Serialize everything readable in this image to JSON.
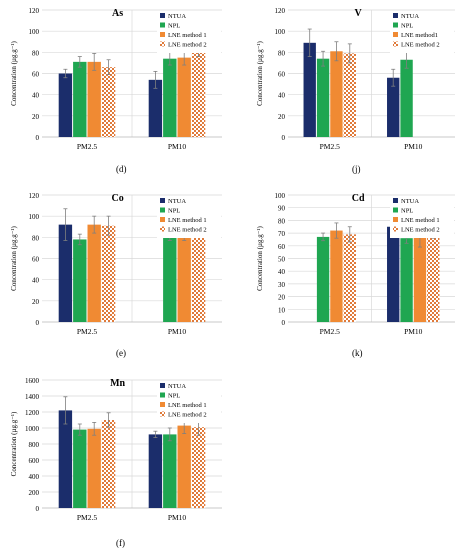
{
  "colors": {
    "NTUA": "#1b2d6b",
    "NPL": "#1fa651",
    "LNE_method_1": "#f08a33",
    "LNE_method_2": "#e07a3a",
    "grid": "#d9d9d9"
  },
  "chart_data": [
    {
      "type": "bar",
      "title": "As",
      "ylabel": "Concentration (µg.g⁻¹)",
      "ylim": [
        0,
        120
      ],
      "yticks": [
        "0",
        "20",
        "40",
        "60",
        "80",
        "100",
        "120"
      ],
      "categories": [
        "PM2.5",
        "PM10"
      ],
      "legend_position": "top-right",
      "series": [
        {
          "name": "NTUA",
          "values": [
            60,
            54
          ],
          "errors": [
            4,
            8
          ]
        },
        {
          "name": "NPL",
          "values": [
            71,
            74
          ],
          "errors": [
            5,
            6
          ]
        },
        {
          "name": "LNE method 1",
          "values": [
            71,
            75
          ],
          "errors": [
            8,
            7
          ]
        },
        {
          "name": "LNE method 2",
          "values": [
            66,
            85
          ],
          "errors": [
            7,
            9
          ]
        }
      ],
      "panel_label": "(d)"
    },
    {
      "type": "bar",
      "title": "V",
      "ylabel": "Concentration (µg.g⁻¹)",
      "ylim": [
        0,
        120
      ],
      "yticks": [
        "0",
        "20",
        "40",
        "60",
        "80",
        "100",
        "120"
      ],
      "categories": [
        "PM2.5",
        "PM10"
      ],
      "legend_position": "top-right",
      "series": [
        {
          "name": "NTUA",
          "values": [
            89,
            56
          ],
          "errors": [
            13,
            8
          ]
        },
        {
          "name": "NPL",
          "values": [
            74,
            73
          ],
          "errors": [
            7,
            8
          ]
        },
        {
          "name": "LNE method1",
          "values": [
            81,
            null
          ],
          "errors": [
            9,
            null
          ]
        },
        {
          "name": "LNE method 2",
          "values": [
            79,
            null
          ],
          "errors": [
            9,
            null
          ]
        }
      ],
      "panel_label": "(j)"
    },
    {
      "type": "bar",
      "title": "Co",
      "ylabel": "Concentration (µg.g⁻¹)",
      "ylim": [
        0,
        120
      ],
      "yticks": [
        "0",
        "20",
        "40",
        "60",
        "80",
        "100",
        "120"
      ],
      "categories": [
        "PM2.5",
        "PM10"
      ],
      "legend_position": "top-right",
      "series": [
        {
          "name": "NTUA",
          "values": [
            92,
            null
          ],
          "errors": [
            15,
            null
          ]
        },
        {
          "name": "NPL",
          "values": [
            78,
            83
          ],
          "errors": [
            5,
            6
          ]
        },
        {
          "name": "LNE method 1",
          "values": [
            92,
            85
          ],
          "errors": [
            8,
            8
          ]
        },
        {
          "name": "LNE method 2",
          "values": [
            91,
            96
          ],
          "errors": [
            9,
            9
          ]
        }
      ],
      "panel_label": "(e)"
    },
    {
      "type": "bar",
      "title": "Cd",
      "ylabel": "Concentration (µg.g⁻¹)",
      "ylim": [
        0,
        100
      ],
      "yticks": [
        "0",
        "10",
        "20",
        "30",
        "40",
        "50",
        "60",
        "70",
        "80",
        "90",
        "100"
      ],
      "categories": [
        "PM2.5",
        "PM10"
      ],
      "legend_position": "top-right",
      "series": [
        {
          "name": "NTUA",
          "values": [
            null,
            75
          ],
          "errors": [
            null,
            7
          ]
        },
        {
          "name": "NPL",
          "values": [
            67,
            66
          ],
          "errors": [
            3,
            4
          ]
        },
        {
          "name": "LNE method 1",
          "values": [
            72,
            67
          ],
          "errors": [
            6,
            8
          ]
        },
        {
          "name": "LNE method 2",
          "values": [
            69,
            75
          ],
          "errors": [
            6,
            9
          ]
        }
      ],
      "panel_label": "(k)"
    },
    {
      "type": "bar",
      "title": "Mn",
      "ylabel": "Concentration (µg.g⁻¹)",
      "ylim": [
        0,
        1600
      ],
      "yticks": [
        "0",
        "200",
        "400",
        "600",
        "800",
        "1000",
        "1200",
        "1400",
        "1600"
      ],
      "categories": [
        "PM2.5",
        "PM10"
      ],
      "legend_position": "top-right",
      "series": [
        {
          "name": "NTUA",
          "values": [
            1220,
            920
          ],
          "errors": [
            170,
            40
          ]
        },
        {
          "name": "NPL",
          "values": [
            980,
            920
          ],
          "errors": [
            70,
            80
          ]
        },
        {
          "name": "LNE method 1",
          "values": [
            990,
            1030
          ],
          "errors": [
            80,
            100
          ]
        },
        {
          "name": "LNE method 2",
          "values": [
            1100,
            1010
          ],
          "errors": [
            90,
            100
          ]
        }
      ],
      "panel_label": "(f)"
    }
  ]
}
